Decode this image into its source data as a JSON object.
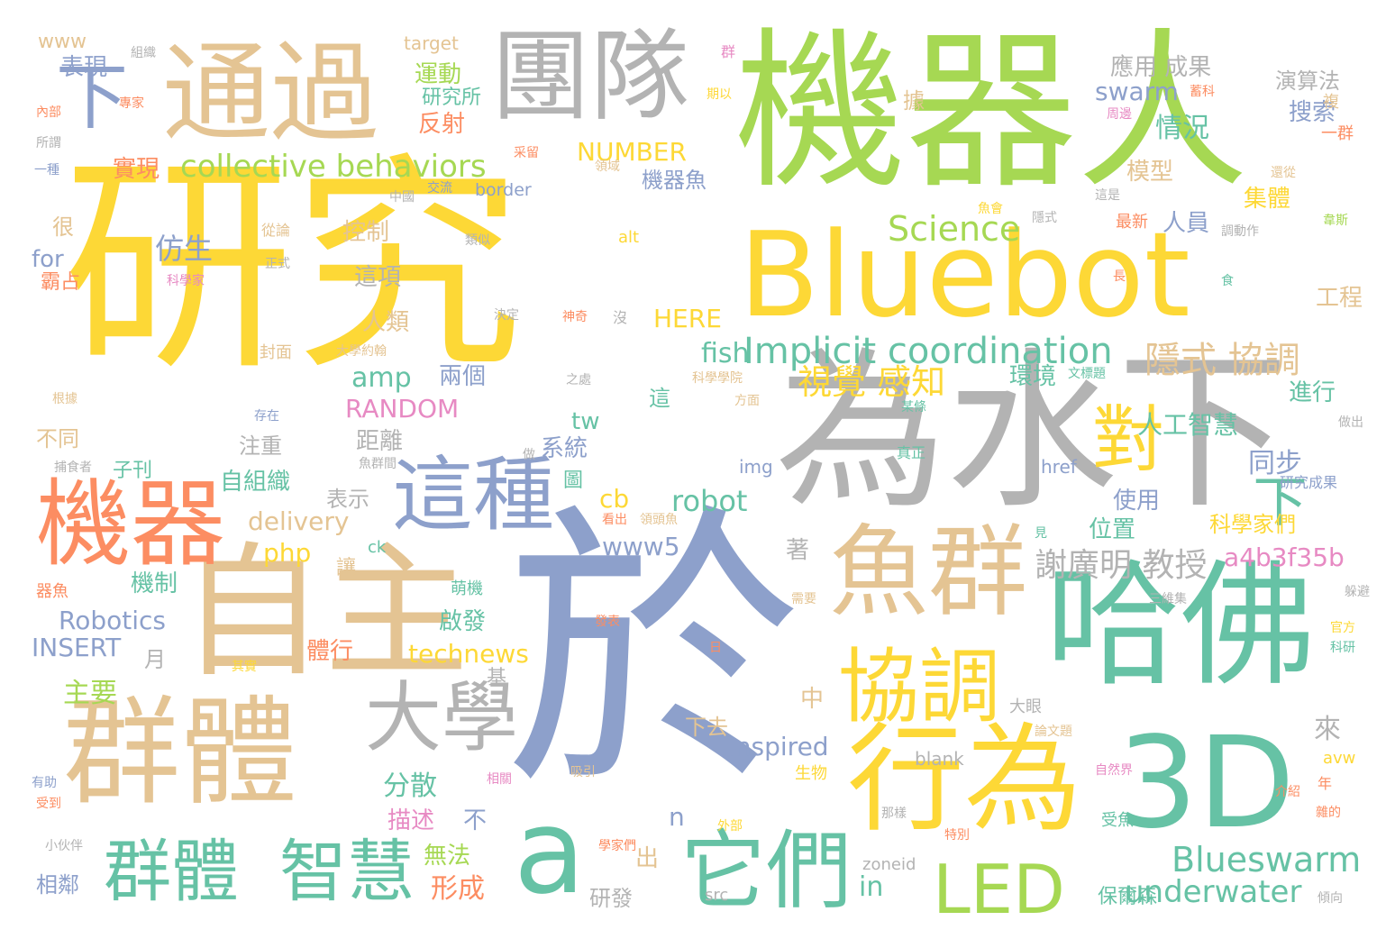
{
  "words": [
    {
      "text": "研究",
      "color": "yellow"
    },
    {
      "text": "於",
      "color": "blue"
    },
    {
      "text": "機器人",
      "color": "green"
    },
    {
      "text": "Bluebot",
      "color": "yellow"
    },
    {
      "text": "為水下",
      "color": "gray"
    },
    {
      "text": "自主",
      "color": "tan"
    },
    {
      "text": "群體",
      "color": "tan"
    },
    {
      "text": "哈佛",
      "color": "teal"
    },
    {
      "text": "3D",
      "color": "teal"
    },
    {
      "text": "通過",
      "color": "tan"
    },
    {
      "text": "團隊",
      "color": "gray"
    },
    {
      "text": "魚群",
      "color": "tan"
    },
    {
      "text": "行為",
      "color": "yellow"
    },
    {
      "text": "機器",
      "color": "orange"
    },
    {
      "text": "這種",
      "color": "blue"
    },
    {
      "text": "協調",
      "color": "yellow"
    },
    {
      "text": "它們",
      "color": "teal"
    },
    {
      "text": "a",
      "color": "teal"
    },
    {
      "text": "大學",
      "color": "gray"
    },
    {
      "text": "群體",
      "color": "teal"
    },
    {
      "text": "智慧",
      "color": "teal"
    },
    {
      "text": "LED",
      "color": "green"
    },
    {
      "text": "對",
      "color": "yellow"
    },
    {
      "text": "下",
      "color": "blue"
    },
    {
      "text": "下",
      "color": "teal"
    },
    {
      "text": "collective behaviors",
      "color": "green"
    },
    {
      "text": "Implicit coordination",
      "color": "teal"
    },
    {
      "text": "Science",
      "color": "green"
    },
    {
      "text": "Blueswarm",
      "color": "teal"
    },
    {
      "text": "underwater",
      "color": "teal"
    },
    {
      "text": "隱式 協調",
      "color": "tan"
    },
    {
      "text": "視覺 感知",
      "color": "yellow"
    },
    {
      "text": "謝廣明 教授",
      "color": "gray"
    },
    {
      "text": "robot",
      "color": "teal"
    },
    {
      "text": "Robotics",
      "color": "blue"
    },
    {
      "text": "inspired",
      "color": "blue"
    },
    {
      "text": "technews",
      "color": "yellow"
    },
    {
      "text": "RANDOM",
      "color": "pink"
    },
    {
      "text": "INSERT",
      "color": "blue"
    },
    {
      "text": "swarm",
      "color": "blue"
    },
    {
      "text": "NUMBER",
      "color": "yellow"
    },
    {
      "text": "HERE",
      "color": "yellow"
    },
    {
      "text": "delivery",
      "color": "tan"
    },
    {
      "text": "a4b3f35b",
      "color": "pink"
    },
    {
      "text": "www5",
      "color": "blue"
    },
    {
      "text": "amp",
      "color": "teal"
    },
    {
      "text": "fish",
      "color": "teal"
    },
    {
      "text": "php",
      "color": "yellow"
    },
    {
      "text": "in",
      "color": "teal"
    },
    {
      "text": "cb",
      "color": "yellow"
    },
    {
      "text": "tw",
      "color": "teal"
    },
    {
      "text": "n",
      "color": "blue"
    },
    {
      "text": "for",
      "color": "blue"
    },
    {
      "text": "www",
      "color": "tan"
    },
    {
      "text": "target",
      "color": "tan"
    },
    {
      "text": "border",
      "color": "blue"
    },
    {
      "text": "alt",
      "color": "yellow"
    },
    {
      "text": "img",
      "color": "blue"
    },
    {
      "text": "href",
      "color": "blue"
    },
    {
      "text": "blank",
      "color": "gray"
    },
    {
      "text": "src",
      "color": "gray"
    },
    {
      "text": "zoneid",
      "color": "gray"
    },
    {
      "text": "avw",
      "color": "yellow"
    },
    {
      "text": "ck",
      "color": "teal"
    },
    {
      "text": "應用 成果",
      "color": "gray"
    },
    {
      "text": "演算法",
      "color": "gray"
    },
    {
      "text": "搜索",
      "color": "blue"
    },
    {
      "text": "情況",
      "color": "teal"
    },
    {
      "text": "模型",
      "color": "tan"
    },
    {
      "text": "集體",
      "color": "yellow"
    },
    {
      "text": "人員",
      "color": "blue"
    },
    {
      "text": "工程",
      "color": "tan"
    },
    {
      "text": "進行",
      "color": "teal"
    },
    {
      "text": "環境",
      "color": "teal"
    },
    {
      "text": "人工智慧",
      "color": "teal"
    },
    {
      "text": "同步",
      "color": "blue"
    },
    {
      "text": "科學家們",
      "color": "yellow"
    },
    {
      "text": "位置",
      "color": "teal"
    },
    {
      "text": "使用",
      "color": "blue"
    },
    {
      "text": "來",
      "color": "gray"
    },
    {
      "text": "表現",
      "color": "blue"
    },
    {
      "text": "運動",
      "color": "green"
    },
    {
      "text": "研究所",
      "color": "teal"
    },
    {
      "text": "反射",
      "color": "orange"
    },
    {
      "text": "實現",
      "color": "orange"
    },
    {
      "text": "機器魚",
      "color": "blue"
    },
    {
      "text": "控制",
      "color": "tan"
    },
    {
      "text": "仿生",
      "color": "blue"
    },
    {
      "text": "這項",
      "color": "gray"
    },
    {
      "text": "人類",
      "color": "tan"
    },
    {
      "text": "兩個",
      "color": "blue"
    },
    {
      "text": "距離",
      "color": "gray"
    },
    {
      "text": "注重",
      "color": "gray"
    },
    {
      "text": "系統",
      "color": "blue"
    },
    {
      "text": "自組織",
      "color": "teal"
    },
    {
      "text": "表示",
      "color": "gray"
    },
    {
      "text": "啟發",
      "color": "teal"
    },
    {
      "text": "機制",
      "color": "teal"
    },
    {
      "text": "體行",
      "color": "orange"
    },
    {
      "text": "主要",
      "color": "green"
    },
    {
      "text": "分散",
      "color": "teal"
    },
    {
      "text": "描述",
      "color": "pink"
    },
    {
      "text": "不",
      "color": "blue"
    },
    {
      "text": "無法",
      "color": "green"
    },
    {
      "text": "形成",
      "color": "orange"
    },
    {
      "text": "研發",
      "color": "gray"
    },
    {
      "text": "相鄰",
      "color": "blue"
    },
    {
      "text": "不同",
      "color": "tan"
    },
    {
      "text": "很",
      "color": "tan"
    },
    {
      "text": "霸占",
      "color": "orange"
    },
    {
      "text": "月",
      "color": "gray"
    },
    {
      "text": "中",
      "color": "tan"
    },
    {
      "text": "出",
      "color": "tan"
    },
    {
      "text": "下去",
      "color": "tan"
    },
    {
      "text": "基",
      "color": "gray"
    },
    {
      "text": "著",
      "color": "gray"
    },
    {
      "text": "這",
      "color": "teal"
    },
    {
      "text": "圖",
      "color": "teal"
    },
    {
      "text": "子刊",
      "color": "teal"
    },
    {
      "text": "讓",
      "color": "tan"
    },
    {
      "text": "保爾森",
      "color": "teal"
    },
    {
      "text": "受魚",
      "color": "teal"
    },
    {
      "text": "據",
      "color": "tan"
    },
    {
      "text": "複",
      "color": "tan"
    },
    {
      "text": "一群",
      "color": "orange"
    },
    {
      "text": "最新",
      "color": "orange"
    },
    {
      "text": "生物",
      "color": "yellow"
    },
    {
      "text": "大眼",
      "color": "gray"
    },
    {
      "text": "萌機",
      "color": "teal"
    },
    {
      "text": "器魚",
      "color": "orange"
    },
    {
      "text": "研究成果",
      "color": "blue"
    },
    {
      "text": "組織",
      "color": "gray"
    },
    {
      "text": "內部",
      "color": "orange"
    },
    {
      "text": "專家",
      "color": "orange"
    },
    {
      "text": "所謂",
      "color": "gray"
    },
    {
      "text": "一種",
      "color": "blue"
    },
    {
      "text": "中國",
      "color": "gray"
    },
    {
      "text": "交流",
      "color": "blue"
    },
    {
      "text": "從論",
      "color": "tan"
    },
    {
      "text": "類似",
      "color": "gray"
    },
    {
      "text": "正式",
      "color": "gray"
    },
    {
      "text": "科學家",
      "color": "pink"
    },
    {
      "text": "決定",
      "color": "gray"
    },
    {
      "text": "神奇",
      "color": "orange"
    },
    {
      "text": "沒",
      "color": "gray"
    },
    {
      "text": "封面",
      "color": "tan"
    },
    {
      "text": "大學約翰",
      "color": "tan"
    },
    {
      "text": "之處",
      "color": "gray"
    },
    {
      "text": "科學學院",
      "color": "tan"
    },
    {
      "text": "方面",
      "color": "tan"
    },
    {
      "text": "文標題",
      "color": "teal"
    },
    {
      "text": "根據",
      "color": "tan"
    },
    {
      "text": "存在",
      "color": "blue"
    },
    {
      "text": "某條",
      "color": "teal"
    },
    {
      "text": "做出",
      "color": "gray"
    },
    {
      "text": "捕食者",
      "color": "gray"
    },
    {
      "text": "魚群間",
      "color": "gray"
    },
    {
      "text": "做",
      "color": "gray"
    },
    {
      "text": "真正",
      "color": "teal"
    },
    {
      "text": "看出",
      "color": "orange"
    },
    {
      "text": "領頭魚",
      "color": "tan"
    },
    {
      "text": "見",
      "color": "teal"
    },
    {
      "text": "三維集",
      "color": "gray"
    },
    {
      "text": "躲避",
      "color": "gray"
    },
    {
      "text": "官方",
      "color": "yellow"
    },
    {
      "text": "科研",
      "color": "teal"
    },
    {
      "text": "需要",
      "color": "tan"
    },
    {
      "text": "發表",
      "color": "orange"
    },
    {
      "text": "其實",
      "color": "yellow"
    },
    {
      "text": "日",
      "color": "orange"
    },
    {
      "text": "論文題",
      "color": "tan"
    },
    {
      "text": "有助",
      "color": "blue"
    },
    {
      "text": "相關",
      "color": "pink"
    },
    {
      "text": "吸引",
      "color": "tan"
    },
    {
      "text": "自然界",
      "color": "pink"
    },
    {
      "text": "介紹",
      "color": "orange"
    },
    {
      "text": "年",
      "color": "orange"
    },
    {
      "text": "受到",
      "color": "orange"
    },
    {
      "text": "外部",
      "color": "yellow"
    },
    {
      "text": "那樣",
      "color": "gray"
    },
    {
      "text": "雜的",
      "color": "orange"
    },
    {
      "text": "小伙伴",
      "color": "gray"
    },
    {
      "text": "學家們",
      "color": "orange"
    },
    {
      "text": "特別",
      "color": "orange"
    },
    {
      "text": "傾向",
      "color": "gray"
    },
    {
      "text": "群",
      "color": "pink"
    },
    {
      "text": "期以",
      "color": "yellow"
    },
    {
      "text": "蓄科",
      "color": "orange"
    },
    {
      "text": "周邊",
      "color": "pink"
    },
    {
      "text": "采留",
      "color": "orange"
    },
    {
      "text": "領域",
      "color": "tan"
    },
    {
      "text": "還從",
      "color": "tan"
    },
    {
      "text": "這是",
      "color": "gray"
    },
    {
      "text": "魚會",
      "color": "yellow"
    },
    {
      "text": "隱式",
      "color": "gray"
    },
    {
      "text": "韋斯",
      "color": "green"
    },
    {
      "text": "調動作",
      "color": "gray"
    },
    {
      "text": "長",
      "color": "orange"
    },
    {
      "text": "食",
      "color": "teal"
    }
  ],
  "colors": {
    "yellow": "#fdd836",
    "green": "#a6d853",
    "gray": "#b3b3b3",
    "tan": "#e4c493",
    "blue": "#8da0cb",
    "orange": "#fc8d62",
    "teal": "#66c2a5",
    "pink": "#e78ac3",
    "background": "#ffffff"
  }
}
